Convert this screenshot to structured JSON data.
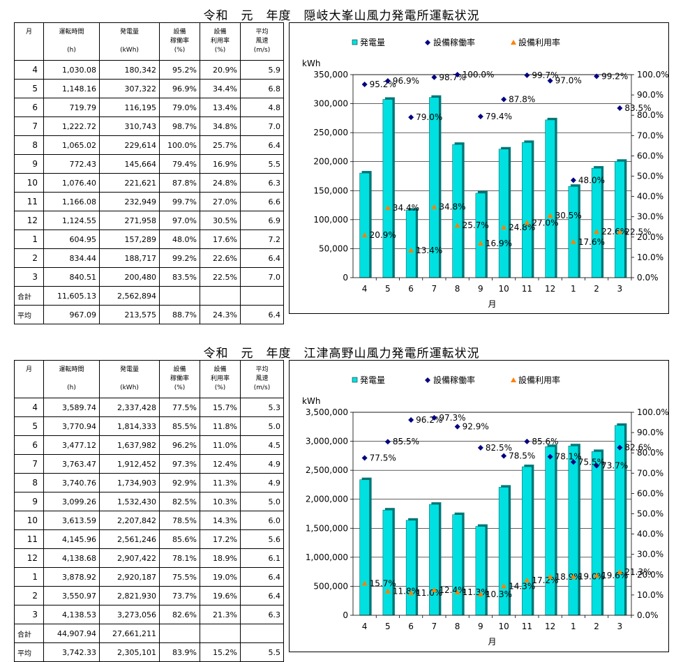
{
  "sections": [
    {
      "title": "令和　元　年度　隠岐大峯山風力発電所運転状況",
      "headers": [
        {
          "line1": "月",
          "line2": "",
          "line3": ""
        },
        {
          "line1": "運転時間",
          "line2": "",
          "line3": "(h)"
        },
        {
          "line1": "発電量",
          "line2": "",
          "line3": "(kWh)"
        },
        {
          "line1": "設備",
          "line2": "稼働率",
          "line3": "(%)"
        },
        {
          "line1": "設備",
          "line2": "利用率",
          "line3": "(%)"
        },
        {
          "line1": "平均",
          "line2": "風速",
          "line3": "(m/s)"
        }
      ],
      "rows": [
        {
          "month": "4",
          "hours": "1,030.08",
          "gen": "180,342",
          "avail": "95.2%",
          "util": "20.9%",
          "wind": "5.9"
        },
        {
          "month": "5",
          "hours": "1,148.16",
          "gen": "307,322",
          "avail": "96.9%",
          "util": "34.4%",
          "wind": "6.8"
        },
        {
          "month": "6",
          "hours": "719.79",
          "gen": "116,195",
          "avail": "79.0%",
          "util": "13.4%",
          "wind": "4.8"
        },
        {
          "month": "7",
          "hours": "1,222.72",
          "gen": "310,743",
          "avail": "98.7%",
          "util": "34.8%",
          "wind": "7.0"
        },
        {
          "month": "8",
          "hours": "1,065.02",
          "gen": "229,614",
          "avail": "100.0%",
          "util": "25.7%",
          "wind": "6.4"
        },
        {
          "month": "9",
          "hours": "772.43",
          "gen": "145,664",
          "avail": "79.4%",
          "util": "16.9%",
          "wind": "5.5"
        },
        {
          "month": "10",
          "hours": "1,076.40",
          "gen": "221,621",
          "avail": "87.8%",
          "util": "24.8%",
          "wind": "6.3"
        },
        {
          "month": "11",
          "hours": "1,166.08",
          "gen": "232,949",
          "avail": "99.7%",
          "util": "27.0%",
          "wind": "6.6"
        },
        {
          "month": "12",
          "hours": "1,124.55",
          "gen": "271,958",
          "avail": "97.0%",
          "util": "30.5%",
          "wind": "6.9"
        },
        {
          "month": "1",
          "hours": "604.95",
          "gen": "157,289",
          "avail": "48.0%",
          "util": "17.6%",
          "wind": "7.2"
        },
        {
          "month": "2",
          "hours": "834.44",
          "gen": "188,717",
          "avail": "99.2%",
          "util": "22.6%",
          "wind": "6.4"
        },
        {
          "month": "3",
          "hours": "840.51",
          "gen": "200,480",
          "avail": "83.5%",
          "util": "22.5%",
          "wind": "7.0"
        }
      ],
      "total": {
        "label": "合計",
        "hours": "11,605.13",
        "gen": "2,562,894",
        "avail": "",
        "util": "",
        "wind": ""
      },
      "average": {
        "label": "平均",
        "hours": "967.09",
        "gen": "213,575",
        "avail": "88.7%",
        "util": "24.3%",
        "wind": "6.4"
      }
    },
    {
      "title": "令和　元　年度　江津高野山風力発電所運転状況",
      "headers": [
        {
          "line1": "月",
          "line2": "",
          "line3": ""
        },
        {
          "line1": "運転時間",
          "line2": "",
          "line3": "(h)"
        },
        {
          "line1": "発電量",
          "line2": "",
          "line3": "(kWh)"
        },
        {
          "line1": "設備",
          "line2": "稼働率",
          "line3": "(%)"
        },
        {
          "line1": "設備",
          "line2": "利用率",
          "line3": "(%)"
        },
        {
          "line1": "平均",
          "line2": "風速",
          "line3": "(m/s)"
        }
      ],
      "rows": [
        {
          "month": "4",
          "hours": "3,589.74",
          "gen": "2,337,428",
          "avail": "77.5%",
          "util": "15.7%",
          "wind": "5.3"
        },
        {
          "month": "5",
          "hours": "3,770.94",
          "gen": "1,814,333",
          "avail": "85.5%",
          "util": "11.8%",
          "wind": "5.0"
        },
        {
          "month": "6",
          "hours": "3,477.12",
          "gen": "1,637,982",
          "avail": "96.2%",
          "util": "11.0%",
          "wind": "4.5"
        },
        {
          "month": "7",
          "hours": "3,763.47",
          "gen": "1,912,452",
          "avail": "97.3%",
          "util": "12.4%",
          "wind": "4.9"
        },
        {
          "month": "8",
          "hours": "3,740.76",
          "gen": "1,734,903",
          "avail": "92.9%",
          "util": "11.3%",
          "wind": "4.9"
        },
        {
          "month": "9",
          "hours": "3,099.26",
          "gen": "1,532,430",
          "avail": "82.5%",
          "util": "10.3%",
          "wind": "5.0"
        },
        {
          "month": "10",
          "hours": "3,613.59",
          "gen": "2,207,842",
          "avail": "78.5%",
          "util": "14.3%",
          "wind": "6.0"
        },
        {
          "month": "11",
          "hours": "4,145.96",
          "gen": "2,561,246",
          "avail": "85.6%",
          "util": "17.2%",
          "wind": "5.6"
        },
        {
          "month": "12",
          "hours": "4,138.68",
          "gen": "2,907,422",
          "avail": "78.1%",
          "util": "18.9%",
          "wind": "6.1"
        },
        {
          "month": "1",
          "hours": "3,878.92",
          "gen": "2,920,187",
          "avail": "75.5%",
          "util": "19.0%",
          "wind": "6.4"
        },
        {
          "month": "2",
          "hours": "3,550.97",
          "gen": "2,821,930",
          "avail": "73.7%",
          "util": "19.6%",
          "wind": "6.4"
        },
        {
          "month": "3",
          "hours": "4,138.53",
          "gen": "3,273,056",
          "avail": "82.6%",
          "util": "21.3%",
          "wind": "6.3"
        }
      ],
      "total": {
        "label": "合計",
        "hours": "44,907.94",
        "gen": "27,661,211",
        "avail": "",
        "util": "",
        "wind": ""
      },
      "average": {
        "label": "平均",
        "hours": "3,742.33",
        "gen": "2,305,101",
        "avail": "83.9%",
        "util": "15.2%",
        "wind": "5.5"
      }
    }
  ],
  "chart_data": [
    {
      "type": "bar",
      "categories": [
        "4",
        "5",
        "6",
        "7",
        "8",
        "9",
        "10",
        "11",
        "12",
        "1",
        "2",
        "3"
      ],
      "xlabel": "月",
      "ylabel": "kWh",
      "ylim": [
        0,
        350000
      ],
      "y_ticks": [
        "0",
        "50,000",
        "100,000",
        "150,000",
        "200,000",
        "250,000",
        "300,000",
        "350,000"
      ],
      "y2lim": [
        0,
        100
      ],
      "y2_ticks": [
        "0.0%",
        "10.0%",
        "20.0%",
        "30.0%",
        "40.0%",
        "50.0%",
        "60.0%",
        "70.0%",
        "80.0%",
        "90.0%",
        "100.0%"
      ],
      "legend_position": "top",
      "grid": true,
      "series": [
        {
          "name": "発電量",
          "kind": "bar",
          "axis": "left",
          "color": "#00e0e0",
          "values": [
            180342,
            307322,
            116195,
            310743,
            229614,
            145664,
            221621,
            232949,
            271958,
            157289,
            188717,
            200480
          ]
        },
        {
          "name": "設備稼働率",
          "kind": "marker-diamond",
          "axis": "right",
          "color": "#000080",
          "values": [
            95.2,
            96.9,
            79.0,
            98.7,
            100.0,
            79.4,
            87.8,
            99.7,
            97.0,
            48.0,
            99.2,
            83.5
          ],
          "labels": [
            "95.2%",
            "96.9%",
            "79.0%",
            "98.7%",
            "100.0%",
            "79.4%",
            "87.8%",
            "99.7%",
            "97.0%",
            "48.0%",
            "99.2%",
            "83.5%"
          ]
        },
        {
          "name": "設備利用率",
          "kind": "marker-triangle",
          "axis": "right",
          "color": "#ff8000",
          "values": [
            20.9,
            34.4,
            13.4,
            34.8,
            25.7,
            16.9,
            24.8,
            27.0,
            30.5,
            17.6,
            22.6,
            22.5
          ],
          "labels": [
            "20.9%",
            "34.4%",
            "13.4%",
            "34.8%",
            "25.7%",
            "16.9%",
            "24.8%",
            "27.0%",
            "30.5%",
            "17.6%",
            "22.6%",
            "22.5%"
          ]
        }
      ]
    },
    {
      "type": "bar",
      "categories": [
        "4",
        "5",
        "6",
        "7",
        "8",
        "9",
        "10",
        "11",
        "12",
        "1",
        "2",
        "3"
      ],
      "xlabel": "月",
      "ylabel": "kWh",
      "ylim": [
        0,
        3500000
      ],
      "y_ticks": [
        "0",
        "500,000",
        "1,000,000",
        "1,500,000",
        "2,000,000",
        "2,500,000",
        "3,000,000",
        "3,500,000"
      ],
      "y2lim": [
        0,
        100
      ],
      "y2_ticks": [
        "0.0%",
        "10.0%",
        "20.0%",
        "30.0%",
        "40.0%",
        "50.0%",
        "60.0%",
        "70.0%",
        "80.0%",
        "90.0%",
        "100.0%"
      ],
      "legend_position": "top",
      "grid": true,
      "series": [
        {
          "name": "発電量",
          "kind": "bar",
          "axis": "left",
          "color": "#00e0e0",
          "values": [
            2337428,
            1814333,
            1637982,
            1912452,
            1734903,
            1532430,
            2207842,
            2561246,
            2907422,
            2920187,
            2821930,
            3273056
          ]
        },
        {
          "name": "設備稼働率",
          "kind": "marker-diamond",
          "axis": "right",
          "color": "#000080",
          "values": [
            77.5,
            85.5,
            96.2,
            97.3,
            92.9,
            82.5,
            78.5,
            85.6,
            78.1,
            75.5,
            73.7,
            82.6
          ],
          "labels": [
            "77.5%",
            "85.5%",
            "96.2%",
            "97.3%",
            "92.9%",
            "82.5%",
            "78.5%",
            "85.6%",
            "78.1%",
            "75.5%",
            "73.7%",
            "82.6%"
          ]
        },
        {
          "name": "設備利用率",
          "kind": "marker-triangle",
          "axis": "right",
          "color": "#ff8000",
          "values": [
            15.7,
            11.8,
            11.0,
            12.4,
            11.3,
            10.3,
            14.3,
            17.2,
            18.9,
            19.0,
            19.6,
            21.3
          ],
          "labels": [
            "15.7%",
            "11.8%",
            "11.0%",
            "12.4%",
            "11.3%",
            "10.3%",
            "14.3%",
            "17.2%",
            "18.9%",
            "19.0%",
            "19.6%",
            "21.3%"
          ]
        }
      ]
    }
  ]
}
